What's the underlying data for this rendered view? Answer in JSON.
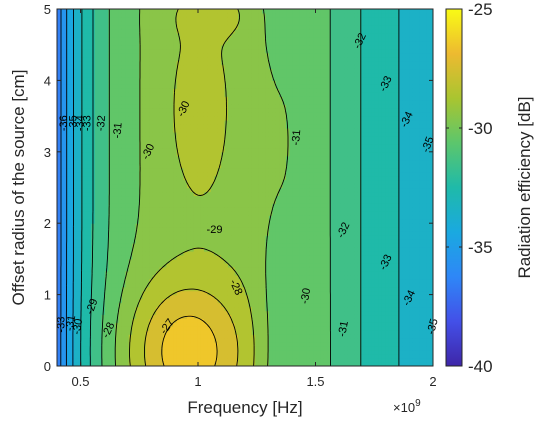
{
  "chart_data": {
    "type": "heatmap",
    "subtype": "filled-contour",
    "xlabel": "Frequency [Hz]",
    "x_multiplier_label": "×10",
    "x_multiplier_exponent": "9",
    "ylabel": "Offset radius of the source [cm]",
    "colorbar_label": "Radiation efficiency [dB]",
    "colormap": "parula",
    "xlim": [
      0.4,
      2.0
    ],
    "ylim": [
      0,
      5
    ],
    "clim": [
      -40,
      -25
    ],
    "x_ticks": [
      0.5,
      1,
      1.5,
      2
    ],
    "x_tick_labels": [
      "0.5",
      "1",
      "1.5",
      "2"
    ],
    "y_ticks": [
      0,
      1,
      2,
      3,
      4,
      5
    ],
    "y_tick_labels": [
      "0",
      "1",
      "2",
      "3",
      "4",
      "5"
    ],
    "colorbar_ticks": [
      -25,
      -30,
      -35,
      -40
    ],
    "colorbar_tick_labels": [
      "-25",
      "-30",
      "-35",
      "-40"
    ],
    "contour_levels": [
      -36,
      -35,
      -34,
      -33,
      -32,
      -31,
      -30,
      -29,
      -28,
      -27
    ],
    "contour_labels": [
      {
        "text": "-27",
        "x": 0.87,
        "y": 0.55,
        "angle": -55
      },
      {
        "text": "-28",
        "x": 1.16,
        "y": 1.1,
        "angle": 65
      },
      {
        "text": "-28",
        "x": 0.62,
        "y": 0.5,
        "angle": -65
      },
      {
        "text": "-29",
        "x": 1.07,
        "y": 1.9,
        "angle": 0
      },
      {
        "text": "-29",
        "x": 0.55,
        "y": 0.83,
        "angle": -70
      },
      {
        "text": "-30",
        "x": 0.94,
        "y": 3.6,
        "angle": -65
      },
      {
        "text": "-30",
        "x": 0.79,
        "y": 3.0,
        "angle": -65
      },
      {
        "text": "-30",
        "x": 1.46,
        "y": 0.98,
        "angle": -80
      },
      {
        "text": "-30",
        "x": 0.49,
        "y": 0.55,
        "angle": -80
      },
      {
        "text": "-31",
        "x": 1.42,
        "y": 3.2,
        "angle": -85
      },
      {
        "text": "-31",
        "x": 0.66,
        "y": 3.3,
        "angle": -85
      },
      {
        "text": "-31",
        "x": 1.62,
        "y": 0.52,
        "angle": -80
      },
      {
        "text": "-31",
        "x": 0.46,
        "y": 0.6,
        "angle": -80
      },
      {
        "text": "-32",
        "x": 1.69,
        "y": 4.55,
        "angle": -65
      },
      {
        "text": "-32",
        "x": 0.59,
        "y": 3.4,
        "angle": -85
      },
      {
        "text": "-32",
        "x": 1.62,
        "y": 1.9,
        "angle": -65
      },
      {
        "text": "-33",
        "x": 1.8,
        "y": 3.95,
        "angle": -65
      },
      {
        "text": "-33",
        "x": 1.8,
        "y": 1.45,
        "angle": -65
      },
      {
        "text": "-33",
        "x": 0.53,
        "y": 3.4,
        "angle": -90
      },
      {
        "text": "-33",
        "x": 0.42,
        "y": 0.58,
        "angle": -90
      },
      {
        "text": "-34",
        "x": 1.89,
        "y": 3.45,
        "angle": -65
      },
      {
        "text": "-34",
        "x": 1.9,
        "y": 0.95,
        "angle": -65
      },
      {
        "text": "-34",
        "x": 0.5,
        "y": 3.4,
        "angle": -90
      },
      {
        "text": "-35",
        "x": 1.98,
        "y": 3.1,
        "angle": -70
      },
      {
        "text": "-35",
        "x": 2.0,
        "y": 0.55,
        "angle": -75
      },
      {
        "text": "-35",
        "x": 0.47,
        "y": 3.4,
        "angle": -90
      },
      {
        "text": "-36",
        "x": 0.43,
        "y": 3.4,
        "angle": -90
      }
    ]
  }
}
